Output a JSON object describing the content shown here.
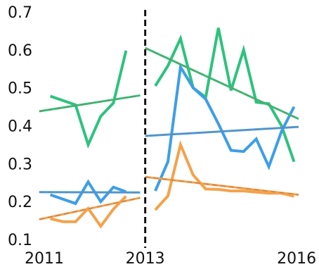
{
  "chart_data": {
    "type": "line",
    "title": "",
    "xlabel": "",
    "ylabel": "",
    "xlim": [
      2011,
      2016.04
    ],
    "ylim": [
      0.1,
      0.7
    ],
    "grid": false,
    "legend": "none",
    "x_tick_labels": [
      "2011",
      "2013",
      "2016"
    ],
    "x_tick_values": [
      2011,
      2013,
      2016
    ],
    "y_tick_labels": [
      "0.1",
      "0.2",
      "0.3",
      "0.4",
      "0.5",
      "0.6",
      "0.7"
    ],
    "y_tick_values": [
      0.1,
      0.2,
      0.3,
      0.4,
      0.5,
      0.6,
      0.7
    ],
    "vline": {
      "x": 2013,
      "color": "#111111",
      "style": "dashed"
    },
    "series": [
      {
        "color": "#2ec27e",
        "x": [
          2011.12,
          2011.62,
          2011.87,
          2012.12,
          2012.37,
          2012.62
        ],
        "values": [
          0.478,
          0.455,
          0.35,
          0.425,
          0.46,
          0.598
        ]
      },
      {
        "color": "#2ec27e",
        "x": [
          2013.2,
          2013.45,
          2013.7,
          2013.95,
          2014.2,
          2014.45,
          2014.7,
          2014.95,
          2015.2,
          2015.45,
          2015.7,
          2015.95
        ],
        "values": [
          0.505,
          0.558,
          0.63,
          0.5,
          0.475,
          0.658,
          0.493,
          0.6,
          0.462,
          0.458,
          0.4,
          0.305
        ]
      },
      {
        "color": "#3d9ee8",
        "x": [
          2011.12,
          2011.62,
          2011.87,
          2012.12,
          2012.37,
          2012.62
        ],
        "values": [
          0.218,
          0.195,
          0.252,
          0.2,
          0.238,
          0.226
        ]
      },
      {
        "color": "#3d9ee8",
        "x": [
          2013.2,
          2013.45,
          2013.7,
          2013.95,
          2014.2,
          2014.45,
          2014.7,
          2014.95,
          2015.2,
          2015.45,
          2015.7,
          2015.95
        ],
        "values": [
          0.228,
          0.305,
          0.555,
          0.5,
          0.47,
          0.405,
          0.335,
          0.332,
          0.365,
          0.292,
          0.385,
          0.45
        ]
      },
      {
        "color": "#f4a24b",
        "x": [
          2011.12,
          2011.37,
          2011.62,
          2011.87,
          2012.12,
          2012.37,
          2012.62
        ],
        "values": [
          0.155,
          0.147,
          0.147,
          0.182,
          0.135,
          0.18,
          0.214
        ]
      },
      {
        "color": "#f4a24b",
        "x": [
          2013.2,
          2013.45,
          2013.7,
          2013.95,
          2014.2,
          2014.45,
          2014.7,
          2014.95,
          2015.2,
          2015.45,
          2015.7,
          2015.95
        ],
        "values": [
          0.178,
          0.215,
          0.35,
          0.27,
          0.233,
          0.232,
          0.228,
          0.228,
          0.225,
          0.222,
          0.222,
          0.214
        ]
      }
    ],
    "trend_lines": [
      {
        "color": "#2ec27e",
        "x": [
          2010.9,
          2012.9
        ],
        "values": [
          0.438,
          0.48
        ]
      },
      {
        "color": "#2ec27e",
        "x": [
          2013.0,
          2016.04
        ],
        "values": [
          0.605,
          0.418
        ]
      },
      {
        "color": "#3d9ee8",
        "x": [
          2010.9,
          2012.9
        ],
        "values": [
          0.225,
          0.224
        ]
      },
      {
        "color": "#3d9ee8",
        "x": [
          2013.0,
          2016.04
        ],
        "values": [
          0.373,
          0.397
        ]
      },
      {
        "color": "#f4a24b",
        "x": [
          2010.9,
          2012.9
        ],
        "values": [
          0.153,
          0.21
        ]
      },
      {
        "color": "#f4a24b",
        "x": [
          2013.0,
          2016.04
        ],
        "values": [
          0.265,
          0.218
        ]
      }
    ]
  }
}
